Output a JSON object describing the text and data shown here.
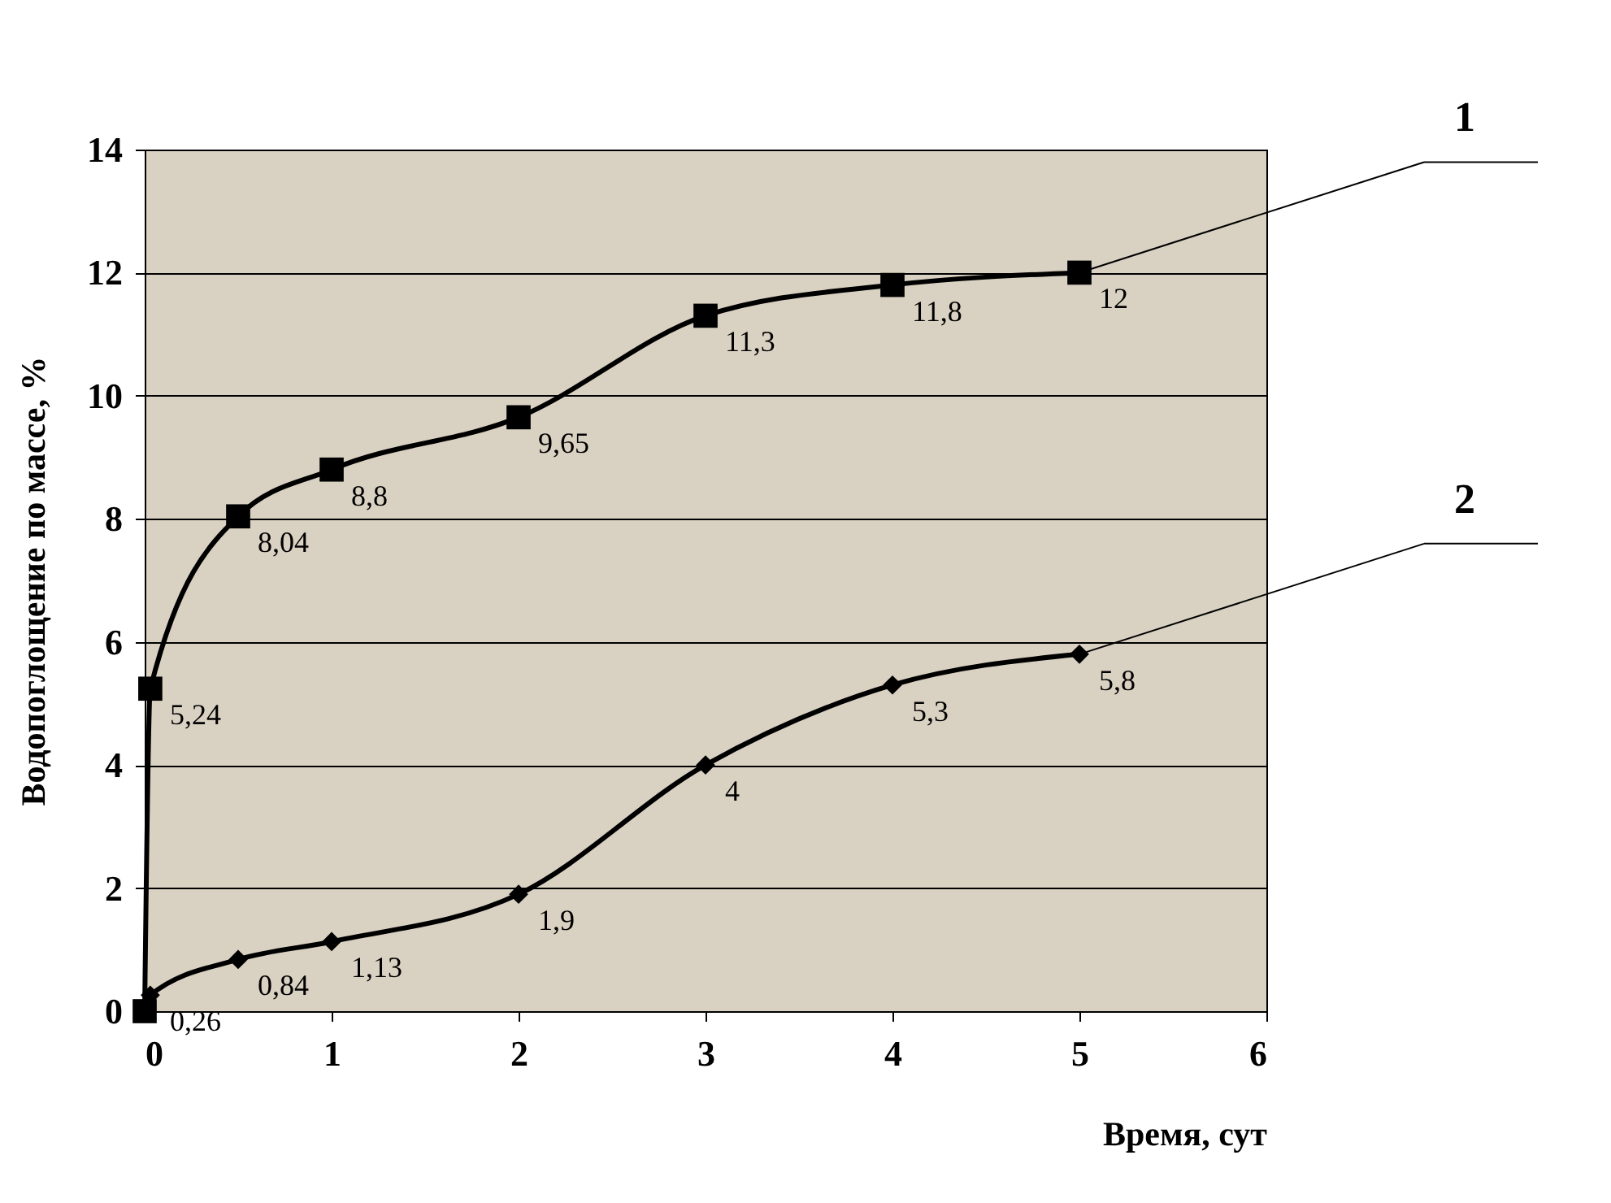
{
  "chart_data": {
    "type": "line",
    "xlabel": "Время, сут",
    "ylabel": "Водопоглощение по массе, %",
    "xlim": [
      0,
      6
    ],
    "xticks": [
      0,
      1,
      2,
      3,
      4,
      5,
      6
    ],
    "ylim": [
      0,
      14
    ],
    "yticks": [
      0,
      2,
      4,
      6,
      8,
      10,
      12,
      14
    ],
    "grid": "y",
    "legend": false,
    "line_style": "solid",
    "series": [
      {
        "name": "1",
        "color": "#000000",
        "marker": "square",
        "x": [
          0,
          0.03,
          0.5,
          1,
          2,
          3,
          4,
          5
        ],
        "values": [
          0,
          5.24,
          8.04,
          8.8,
          9.65,
          11.3,
          11.8,
          12
        ],
        "value_labels": [
          null,
          "5,24",
          "8,04",
          "8,8",
          "9,65",
          "11,3",
          "11,8",
          "12"
        ]
      },
      {
        "name": "2",
        "color": "#000000",
        "marker": "diamond",
        "x": [
          0,
          0.03,
          0.5,
          1,
          2,
          3,
          4,
          5
        ],
        "values": [
          0,
          0.26,
          0.84,
          1.13,
          1.9,
          4,
          5.3,
          5.8
        ],
        "value_labels": [
          null,
          "0,26",
          "0,84",
          "1,13",
          "1,9",
          "4",
          "5,3",
          "5,8"
        ]
      }
    ]
  }
}
